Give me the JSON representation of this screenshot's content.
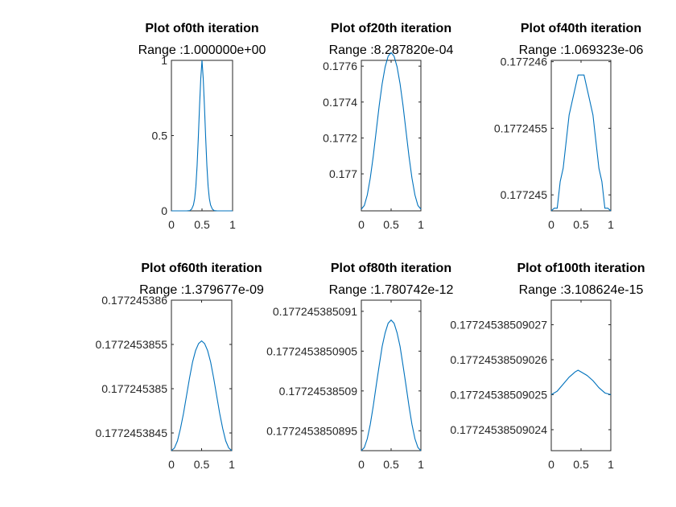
{
  "figure": {
    "background": "#ffffff",
    "axis_color": "#262626",
    "series_color": "#0072bd"
  },
  "chart_data": [
    {
      "type": "line",
      "title": "Plot of0th iteration",
      "subtitle": "Range :1.000000e+00",
      "xlim": [
        0,
        1
      ],
      "ylim": [
        0,
        1
      ],
      "xticks": [
        0,
        0.5,
        1
      ],
      "xtick_labels": [
        "0",
        "0.5",
        "1"
      ],
      "yticks": [
        0,
        0.5,
        1
      ],
      "ytick_labels": [
        "0",
        "0.5",
        "1"
      ],
      "grid": false,
      "series": [
        {
          "x": [
            0,
            0.2,
            0.25,
            0.3,
            0.33,
            0.36,
            0.38,
            0.4,
            0.42,
            0.44,
            0.46,
            0.48,
            0.5,
            0.52,
            0.54,
            0.56,
            0.58,
            0.6,
            0.62,
            0.64,
            0.67,
            0.7,
            0.75,
            0.8,
            1
          ],
          "y": [
            0,
            0,
            0,
            0.002,
            0.011,
            0.039,
            0.082,
            0.164,
            0.3,
            0.488,
            0.696,
            0.88,
            1,
            0.88,
            0.696,
            0.488,
            0.3,
            0.164,
            0.082,
            0.039,
            0.011,
            0.002,
            0,
            0,
            0
          ]
        }
      ]
    },
    {
      "type": "line",
      "title": "Plot of20th iteration",
      "subtitle": "Range :8.287820e-04",
      "xlim": [
        0,
        1
      ],
      "ylim": [
        0.176794,
        0.1776322
      ],
      "xticks": [
        0,
        0.5,
        1
      ],
      "xtick_labels": [
        "0",
        "0.5",
        "1"
      ],
      "yticks": [
        0.177,
        0.1772,
        0.1774,
        0.1776
      ],
      "ytick_labels": [
        "0.177",
        "0.1772",
        "0.1774",
        "0.1776"
      ],
      "grid": false,
      "series": [
        {
          "x": [
            0,
            0.05,
            0.1,
            0.15,
            0.2,
            0.25,
            0.3,
            0.35,
            0.4,
            0.45,
            0.5,
            0.55,
            0.6,
            0.65,
            0.7,
            0.75,
            0.8,
            0.85,
            0.9,
            0.95,
            1
          ],
          "y": [
            0.1768034,
            0.1768236,
            0.1768826,
            0.1769764,
            0.1770981,
            0.1772393,
            0.1773806,
            0.1775023,
            0.1775961,
            0.1776551,
            0.1776753,
            0.1776551,
            0.1775961,
            0.1775023,
            0.1773806,
            0.1772393,
            0.1770981,
            0.1769764,
            0.1768826,
            0.1768236,
            0.1768034
          ]
        }
      ]
    },
    {
      "type": "line",
      "title": "Plot of40th iteration",
      "subtitle": "Range :1.069323e-06",
      "xlim": [
        0,
        1
      ],
      "ylim": [
        0.17724488,
        0.17724601
      ],
      "xticks": [
        0,
        0.5,
        1
      ],
      "xtick_labels": [
        "0",
        "0.5",
        "1"
      ],
      "yticks": [
        0.177245,
        0.1772455,
        0.177246
      ],
      "ytick_labels": [
        "0.177245",
        "0.1772455",
        "0.177246"
      ],
      "grid": false,
      "series": [
        {
          "x": [
            0,
            0.05,
            0.1,
            0.15,
            0.2,
            0.25,
            0.3,
            0.35,
            0.4,
            0.45,
            0.5,
            0.55,
            0.6,
            0.65,
            0.7,
            0.75,
            0.8,
            0.85,
            0.9,
            0.95,
            1
          ],
          "y": [
            0.17724488,
            0.1772449,
            0.1772449,
            0.1772451,
            0.1772452,
            0.1772454,
            0.1772456,
            0.1772457,
            0.1772458,
            0.1772459,
            0.1772459,
            0.1772459,
            0.1772458,
            0.1772457,
            0.1772456,
            0.1772454,
            0.1772452,
            0.1772451,
            0.1772449,
            0.1772449,
            0.17724488
          ]
        }
      ]
    },
    {
      "type": "line",
      "title": "Plot of60th iteration",
      "subtitle": "Range :1.379677e-09",
      "xlim": [
        0,
        1
      ],
      "ylim": [
        0.1772453843,
        0.177245386
      ],
      "xticks": [
        0,
        0.5,
        1
      ],
      "xtick_labels": [
        "0",
        "0.5",
        "1"
      ],
      "yticks": [
        0.1772453845,
        0.177245385,
        0.1772453855,
        0.177245386
      ],
      "ytick_labels": [
        "0.1772453845",
        "0.177245385",
        "0.1772453855",
        "0.177245386"
      ],
      "grid": false,
      "series": [
        {
          "x": [
            0,
            0.05,
            0.1,
            0.15,
            0.2,
            0.25,
            0.3,
            0.35,
            0.4,
            0.45,
            0.5,
            0.55,
            0.6,
            0.65,
            0.7,
            0.75,
            0.8,
            0.85,
            0.9,
            0.95,
            1
          ],
          "y": [
            0.1772453843,
            0.17724538433,
            0.17724538441,
            0.17724538455,
            0.17724538472,
            0.17724538492,
            0.17724538512,
            0.1772453853,
            0.17724538543,
            0.17724538551,
            0.17724538554,
            0.17724538551,
            0.17724538543,
            0.1772453853,
            0.17724538512,
            0.17724538492,
            0.17724538472,
            0.17724538455,
            0.17724538441,
            0.17724538433,
            0.1772453843
          ]
        }
      ]
    },
    {
      "type": "line",
      "title": "Plot of80th iteration",
      "subtitle": "Range :1.780742e-12",
      "xlim": [
        0,
        1
      ],
      "ylim": [
        0.17724538508925,
        0.17724538509114
      ],
      "xticks": [
        0,
        0.5,
        1
      ],
      "xtick_labels": [
        "0",
        "0.5",
        "1"
      ],
      "yticks": [
        0.1772453850895,
        0.17724538509,
        0.1772453850905,
        0.177245385091
      ],
      "ytick_labels": [
        "0.1772453850895",
        "0.17724538509",
        "0.1772453850905",
        "0.177245385091"
      ],
      "grid": false,
      "series": [
        {
          "x": [
            0,
            0.05,
            0.1,
            0.15,
            0.2,
            0.25,
            0.3,
            0.35,
            0.4,
            0.45,
            0.5,
            0.55,
            0.6,
            0.65,
            0.7,
            0.75,
            0.8,
            0.85,
            0.9,
            0.95,
            1
          ],
          "y": [
            0.17724538508925,
            0.17724538508929,
            0.1772453850894,
            0.17724538508958,
            0.17724538508981,
            0.17724538509007,
            0.17724538509032,
            0.17724538509056,
            0.17724538509073,
            0.17724538509085,
            0.17724538509089,
            0.17724538509085,
            0.17724538509073,
            0.17724538509056,
            0.17724538509032,
            0.17724538509007,
            0.17724538508981,
            0.17724538508958,
            0.1772453850894,
            0.17724538508929,
            0.17724538508925
          ]
        }
      ]
    },
    {
      "type": "line",
      "title": "Plot of100th iteration",
      "subtitle": "Range :3.108624e-15",
      "xlim": [
        0,
        1
      ],
      "ylim": [
        0.177245385090234,
        0.177245385090277
      ],
      "xticks": [
        0,
        0.5,
        1
      ],
      "xtick_labels": [
        "0",
        "0.5",
        "1"
      ],
      "yticks": [
        0.17724538509024,
        0.17724538509025,
        0.17724538509026,
        0.17724538509027
      ],
      "ytick_labels": [
        "0.17724538509024",
        "0.17724538509025",
        "0.17724538509026",
        "0.17724538509027"
      ],
      "grid": false,
      "series": [
        {
          "x": [
            0,
            0.1,
            0.2,
            0.3,
            0.4,
            0.45,
            0.5,
            0.6,
            0.7,
            0.8,
            0.9,
            1
          ],
          "y": [
            0.17724538509025,
            0.177245385090251,
            0.177245385090253,
            0.177245385090255,
            0.1772453850902565,
            0.177245385090257,
            0.1772453850902565,
            0.1772453850902555,
            0.177245385090254,
            0.177245385090252,
            0.1772453850902505,
            0.17724538509025
          ]
        }
      ]
    }
  ]
}
